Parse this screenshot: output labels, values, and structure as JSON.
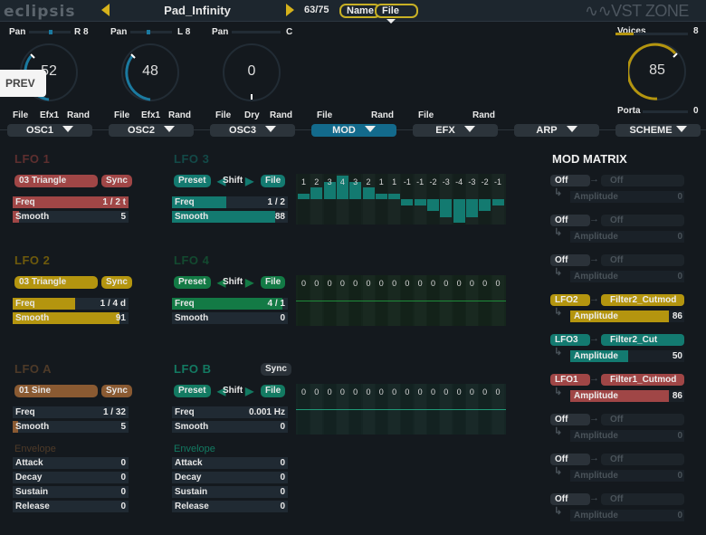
{
  "header": {
    "logo": "eclipsis",
    "preset_name": "Pad_Infinity",
    "preset_count": "63/75",
    "name_button": "Name",
    "file_button": "File",
    "brand": "VST ZONE",
    "prev_button": "PREV"
  },
  "osc": [
    {
      "pan_label": "Pan",
      "pan_value": "R 8",
      "knob_value": "52",
      "file": "File",
      "mid": "Efx1",
      "rand": "Rand",
      "tab": "OSC1"
    },
    {
      "pan_label": "Pan",
      "pan_value": "L 8",
      "knob_value": "48",
      "file": "File",
      "mid": "Efx1",
      "rand": "Rand",
      "tab": "OSC2"
    },
    {
      "pan_label": "Pan",
      "pan_value": "C",
      "knob_value": "0",
      "file": "File",
      "mid": "Dry",
      "rand": "Rand",
      "tab": "OSC3"
    }
  ],
  "mod_tab": {
    "file": "File",
    "rand": "Rand",
    "label": "MOD"
  },
  "efx_tab": {
    "file": "File",
    "rand": "Rand",
    "label": "EFX"
  },
  "arp_tab": {
    "label": "ARP"
  },
  "scheme_tab": {
    "label": "SCHEME"
  },
  "master": {
    "voices_label": "Voices",
    "voices_value": "8",
    "knob_value": "85",
    "porta_label": "Porta",
    "porta_value": "0"
  },
  "lfo1": {
    "title": "LFO 1",
    "shape": "03 Triangle",
    "sync": "Sync",
    "freq_label": "Freq",
    "freq_value": "1 / 2 t",
    "smooth_label": "Smooth",
    "smooth_value": "5",
    "color": "#a04646"
  },
  "lfo2": {
    "title": "LFO 2",
    "shape": "03 Triangle",
    "sync": "Sync",
    "freq_label": "Freq",
    "freq_value": "1 / 4 d",
    "smooth_label": "Smooth",
    "smooth_value": "91",
    "color": "#b4950f"
  },
  "lfoA": {
    "title": "LFO A",
    "shape": "01 Sine",
    "sync": "Sync",
    "freq_label": "Freq",
    "freq_value": "1 / 32",
    "smooth_label": "Smooth",
    "smooth_value": "5",
    "color": "#8a5a32",
    "env_title": "Envelope",
    "env": [
      {
        "label": "Attack",
        "value": "0"
      },
      {
        "label": "Decay",
        "value": "0"
      },
      {
        "label": "Sustain",
        "value": "0"
      },
      {
        "label": "Release",
        "value": "0"
      }
    ]
  },
  "lfo3": {
    "title": "LFO 3",
    "preset": "Preset",
    "shift": "Shift",
    "file": "File",
    "freq_label": "Freq",
    "freq_value": "1 / 2",
    "smooth_label": "Smooth",
    "smooth_value": "88",
    "color": "#137a70",
    "steps": [
      "1",
      "2",
      "3",
      "4",
      "3",
      "2",
      "1",
      "1",
      "-1",
      "-1",
      "-2",
      "-3",
      "-4",
      "-3",
      "-2",
      "-1"
    ]
  },
  "lfo4": {
    "title": "LFO 4",
    "preset": "Preset",
    "shift": "Shift",
    "file": "File",
    "freq_label": "Freq",
    "freq_value": "4 / 1",
    "smooth_label": "Smooth",
    "smooth_value": "0",
    "color": "#137a45",
    "steps": [
      "0",
      "0",
      "0",
      "0",
      "0",
      "0",
      "0",
      "0",
      "0",
      "0",
      "0",
      "0",
      "0",
      "0",
      "0",
      "0"
    ]
  },
  "lfoB": {
    "title": "LFO B",
    "sync": "Sync",
    "preset": "Preset",
    "shift": "Shift",
    "file": "File",
    "freq_label": "Freq",
    "freq_value": "0.001 Hz",
    "smooth_label": "Smooth",
    "smooth_value": "0",
    "color": "#137a62",
    "steps": [
      "0",
      "0",
      "0",
      "0",
      "0",
      "0",
      "0",
      "0",
      "0",
      "0",
      "0",
      "0",
      "0",
      "0",
      "0",
      "0"
    ],
    "env_title": "Envelope",
    "env": [
      {
        "label": "Attack",
        "value": "0"
      },
      {
        "label": "Decay",
        "value": "0"
      },
      {
        "label": "Sustain",
        "value": "0"
      },
      {
        "label": "Release",
        "value": "0"
      }
    ]
  },
  "mod_matrix": {
    "title": "MOD MATRIX",
    "slots": [
      {
        "source": "Off",
        "dest": "Off",
        "amount_label": "Amplitude",
        "amount": "0"
      },
      {
        "source": "Off",
        "dest": "Off",
        "amount_label": "Amplitude",
        "amount": "0"
      },
      {
        "source": "Off",
        "dest": "Off",
        "amount_label": "Amplitude",
        "amount": "0"
      },
      {
        "source": "LFO2",
        "dest": "Filter2_Cutmod",
        "amount_label": "Amplitude",
        "amount": "86",
        "color": "#b4950f"
      },
      {
        "source": "LFO3",
        "dest": "Filter2_Cut",
        "amount_label": "Amplitude",
        "amount": "50",
        "color": "#137a70"
      },
      {
        "source": "LFO1",
        "dest": "Filter1_Cutmod",
        "amount_label": "Amplitude",
        "amount": "86",
        "color": "#a04646"
      },
      {
        "source": "Off",
        "dest": "Off",
        "amount_label": "Amplitude",
        "amount": "0"
      },
      {
        "source": "Off",
        "dest": "Off",
        "amount_label": "Amplitude",
        "amount": "0"
      },
      {
        "source": "Off",
        "dest": "Off",
        "amount_label": "Amplitude",
        "amount": "0"
      }
    ]
  }
}
